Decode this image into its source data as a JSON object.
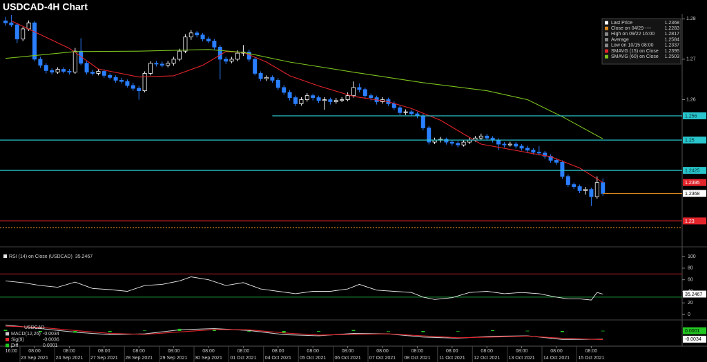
{
  "chart_data": [
    {
      "type": "candlestick",
      "title": "USDCAD-4H Chart",
      "up_color": "#ffffff",
      "down_color": "#2a7fff",
      "ylim": [
        1.2241,
        1.2809
      ],
      "yticks": [
        1.26,
        1.27,
        1.28
      ],
      "candles": [
        [
          1.2795,
          1.2805,
          1.2783,
          1.279
        ],
        [
          1.279,
          1.2817,
          1.278,
          1.2785
        ],
        [
          1.2785,
          1.279,
          1.274,
          1.275
        ],
        [
          1.275,
          1.278,
          1.2745,
          1.2775
        ],
        [
          1.2775,
          1.2796,
          1.277,
          1.279
        ],
        [
          1.279,
          1.2795,
          1.2695,
          1.27
        ],
        [
          1.27,
          1.2706,
          1.2678,
          1.2685
        ],
        [
          1.2685,
          1.269,
          1.2665,
          1.2672
        ],
        [
          1.2672,
          1.2678,
          1.2662,
          1.2668
        ],
        [
          1.2668,
          1.268,
          1.2664,
          1.2675
        ],
        [
          1.2675,
          1.268,
          1.2665,
          1.267
        ],
        [
          1.267,
          1.2676,
          1.2662,
          1.2668
        ],
        [
          1.2668,
          1.2728,
          1.2664,
          1.272
        ],
        [
          1.272,
          1.2752,
          1.2685,
          1.269
        ],
        [
          1.269,
          1.2695,
          1.2662,
          1.2668
        ],
        [
          1.2668,
          1.2674,
          1.266,
          1.2665
        ],
        [
          1.2665,
          1.2676,
          1.266,
          1.267
        ],
        [
          1.267,
          1.2675,
          1.2654,
          1.266
        ],
        [
          1.266,
          1.2665,
          1.265,
          1.2655
        ],
        [
          1.2655,
          1.266,
          1.2642,
          1.2648
        ],
        [
          1.2648,
          1.2654,
          1.264,
          1.2645
        ],
        [
          1.2645,
          1.265,
          1.263,
          1.2635
        ],
        [
          1.2635,
          1.2642,
          1.2622,
          1.2628
        ],
        [
          1.2628,
          1.2634,
          1.26,
          1.2622
        ],
        [
          1.2622,
          1.267,
          1.2618,
          1.2665
        ],
        [
          1.2665,
          1.2695,
          1.266,
          1.269
        ],
        [
          1.269,
          1.2696,
          1.2682,
          1.2688
        ],
        [
          1.2688,
          1.2694,
          1.268,
          1.2685
        ],
        [
          1.2685,
          1.2696,
          1.268,
          1.269
        ],
        [
          1.269,
          1.2706,
          1.2684,
          1.27
        ],
        [
          1.27,
          1.2726,
          1.2695,
          1.272
        ],
        [
          1.272,
          1.2762,
          1.2715,
          1.2755
        ],
        [
          1.2755,
          1.2772,
          1.2748,
          1.2765
        ],
        [
          1.2765,
          1.277,
          1.2754,
          1.276
        ],
        [
          1.276,
          1.2765,
          1.2744,
          1.275
        ],
        [
          1.275,
          1.2756,
          1.274,
          1.2745
        ],
        [
          1.2745,
          1.275,
          1.2724,
          1.273
        ],
        [
          1.273,
          1.2735,
          1.265,
          1.27
        ],
        [
          1.27,
          1.2706,
          1.2688,
          1.2695
        ],
        [
          1.2695,
          1.2706,
          1.269,
          1.27
        ],
        [
          1.27,
          1.2722,
          1.2695,
          1.2715
        ],
        [
          1.2715,
          1.2735,
          1.2708,
          1.2718
        ],
        [
          1.2718,
          1.2724,
          1.2694,
          1.27
        ],
        [
          1.27,
          1.2705,
          1.266,
          1.2665
        ],
        [
          1.2665,
          1.267,
          1.2646,
          1.2652
        ],
        [
          1.2652,
          1.266,
          1.2646,
          1.2655
        ],
        [
          1.2655,
          1.266,
          1.2642,
          1.2648
        ],
        [
          1.2648,
          1.2653,
          1.2624,
          1.263
        ],
        [
          1.263,
          1.2636,
          1.2612,
          1.2618
        ],
        [
          1.2618,
          1.2624,
          1.2598,
          1.2605
        ],
        [
          1.2605,
          1.261,
          1.2584,
          1.259
        ],
        [
          1.259,
          1.2606,
          1.2585,
          1.26
        ],
        [
          1.26,
          1.2616,
          1.2595,
          1.261
        ],
        [
          1.261,
          1.2615,
          1.2598,
          1.2605
        ],
        [
          1.2605,
          1.261,
          1.2592,
          1.2598
        ],
        [
          1.2598,
          1.2606,
          1.2575,
          1.26
        ],
        [
          1.26,
          1.2605,
          1.2588,
          1.2595
        ],
        [
          1.2595,
          1.2604,
          1.259,
          1.2598
        ],
        [
          1.2598,
          1.2606,
          1.2594,
          1.26
        ],
        [
          1.26,
          1.2618,
          1.2596,
          1.261
        ],
        [
          1.261,
          1.2645,
          1.2605,
          1.263
        ],
        [
          1.263,
          1.264,
          1.2618,
          1.2625
        ],
        [
          1.2625,
          1.263,
          1.2604,
          1.261
        ],
        [
          1.261,
          1.2615,
          1.2598,
          1.2605
        ],
        [
          1.2605,
          1.261,
          1.2588,
          1.2595
        ],
        [
          1.2595,
          1.2606,
          1.259,
          1.26
        ],
        [
          1.26,
          1.2605,
          1.2584,
          1.259
        ],
        [
          1.259,
          1.2596,
          1.2574,
          1.258
        ],
        [
          1.258,
          1.2585,
          1.2562,
          1.2568
        ],
        [
          1.2568,
          1.2576,
          1.2562,
          1.257
        ],
        [
          1.257,
          1.2575,
          1.256,
          1.2565
        ],
        [
          1.2565,
          1.257,
          1.2554,
          1.256
        ],
        [
          1.256,
          1.2565,
          1.2524,
          1.253
        ],
        [
          1.253,
          1.2535,
          1.2489,
          1.2495
        ],
        [
          1.2495,
          1.2506,
          1.249,
          1.25
        ],
        [
          1.25,
          1.2508,
          1.2494,
          1.2502
        ],
        [
          1.2502,
          1.2506,
          1.2489,
          1.2495
        ],
        [
          1.2495,
          1.25,
          1.2486,
          1.2492
        ],
        [
          1.2492,
          1.2497,
          1.2482,
          1.2488
        ],
        [
          1.2488,
          1.25,
          1.2484,
          1.2495
        ],
        [
          1.2495,
          1.2506,
          1.249,
          1.25
        ],
        [
          1.25,
          1.251,
          1.2496,
          1.2505
        ],
        [
          1.2505,
          1.2516,
          1.25,
          1.251
        ],
        [
          1.251,
          1.2515,
          1.2499,
          1.2505
        ],
        [
          1.2505,
          1.251,
          1.2494,
          1.25
        ],
        [
          1.25,
          1.2505,
          1.2475,
          1.249
        ],
        [
          1.249,
          1.2495,
          1.2482,
          1.2488
        ],
        [
          1.2488,
          1.2496,
          1.2484,
          1.249
        ],
        [
          1.249,
          1.2495,
          1.2479,
          1.2485
        ],
        [
          1.2485,
          1.249,
          1.2474,
          1.248
        ],
        [
          1.248,
          1.2486,
          1.2469,
          1.2475
        ],
        [
          1.2475,
          1.248,
          1.2464,
          1.247
        ],
        [
          1.247,
          1.2485,
          1.2462,
          1.2468
        ],
        [
          1.2468,
          1.2473,
          1.2454,
          1.246
        ],
        [
          1.246,
          1.2465,
          1.2444,
          1.245
        ],
        [
          1.245,
          1.2455,
          1.2439,
          1.2445
        ],
        [
          1.2445,
          1.245,
          1.2404,
          1.241
        ],
        [
          1.241,
          1.2415,
          1.2384,
          1.239
        ],
        [
          1.239,
          1.2395,
          1.2379,
          1.2385
        ],
        [
          1.2385,
          1.239,
          1.2369,
          1.2375
        ],
        [
          1.2375,
          1.2384,
          1.2365,
          1.2378
        ],
        [
          1.2378,
          1.2382,
          1.2337,
          1.236
        ],
        [
          1.236,
          1.241,
          1.2355,
          1.2395
        ],
        [
          1.2395,
          1.2405,
          1.2362,
          1.2368
        ]
      ],
      "series": [
        {
          "name": "SMAVG (15)  on Close",
          "color": "#e3242b",
          "axis_box": true,
          "x": [
            1,
            6,
            11,
            16,
            23,
            29,
            34,
            38,
            41,
            45,
            49,
            54,
            60,
            66,
            70,
            75,
            79,
            82,
            90,
            94,
            99,
            103
          ],
          "values": [
            1.2795,
            1.2761,
            1.2727,
            1.2676,
            1.2656,
            1.2659,
            1.2685,
            1.2719,
            1.2717,
            1.2693,
            1.2659,
            1.2634,
            1.2608,
            1.2595,
            1.2578,
            1.2549,
            1.2515,
            1.249,
            1.2469,
            1.2459,
            1.2431,
            1.2395
          ]
        },
        {
          "name": "SMAVG (60)  on Close",
          "color": "#7dc21e",
          "axis_box": false,
          "x": [
            0,
            12,
            23,
            35,
            41,
            49,
            60,
            72,
            83,
            90,
            96,
            103
          ],
          "values": [
            1.2702,
            1.2719,
            1.272,
            1.2724,
            1.2717,
            1.2693,
            1.2668,
            1.2642,
            1.2622,
            1.26,
            1.2558,
            1.2503
          ]
        }
      ],
      "levels": [
        {
          "value": 1.256,
          "color": "#29c5cc",
          "label_color": "#003333",
          "x_from": 46
        },
        {
          "value": 1.25,
          "color": "#29c5cc",
          "label_color": "#003333"
        },
        {
          "value": 1.2425,
          "color": "#29c5cc",
          "label_color": "#003333"
        },
        {
          "value": 1.23,
          "color": "#e3242b",
          "label_color": "#ffffff"
        },
        {
          "value": 1.2368,
          "color": "#e08a1e",
          "box_color": "#ffffff",
          "label_color": "#000000",
          "x_from": 103
        },
        {
          "value": 1.2283,
          "color": "#e08a1e",
          "dash": true
        }
      ],
      "legend": [
        {
          "label": "Last Price",
          "value": 1.2368,
          "color": "#ffffff"
        },
        {
          "label": "Close on 04/29  ----",
          "value": 1.2283,
          "color": "#e08a1e"
        },
        {
          "label": "High on 09/22 16:00",
          "value": 1.2817,
          "color": "#888888"
        },
        {
          "label": "Average",
          "value": 1.2584,
          "color": "#888888"
        },
        {
          "label": "Low on 10/15 08:00",
          "value": 1.2337,
          "color": "#888888"
        }
      ],
      "xticks": [
        {
          "value": 1,
          "label": "16:00"
        },
        {
          "value": 5,
          "label": "08:00"
        },
        {
          "value": 11,
          "label": "08:00"
        },
        {
          "value": 17,
          "label": "08:00"
        },
        {
          "value": 23,
          "label": "08:00"
        },
        {
          "value": 29,
          "label": "08:00"
        },
        {
          "value": 35,
          "label": "08:00"
        },
        {
          "value": 41,
          "label": "08:00"
        },
        {
          "value": 47,
          "label": "08:00"
        },
        {
          "value": 53,
          "label": "08:00"
        },
        {
          "value": 59,
          "label": "08:00"
        },
        {
          "value": 65,
          "label": "08:00"
        },
        {
          "value": 71,
          "label": "08:00"
        },
        {
          "value": 77,
          "label": "08:00"
        },
        {
          "value": 83,
          "label": "08:00"
        },
        {
          "value": 89,
          "label": "08:00"
        },
        {
          "value": 95,
          "label": "08:00"
        },
        {
          "value": 101,
          "label": "08:00"
        }
      ],
      "date_labels": [
        {
          "value": 5,
          "label": "23 Sep 2021"
        },
        {
          "value": 11,
          "label": "24 Sep 2021"
        },
        {
          "value": 17,
          "label": "27 Sep 2021"
        },
        {
          "value": 23,
          "label": "28 Sep 2021"
        },
        {
          "value": 29,
          "label": "29 Sep 2021"
        },
        {
          "value": 35,
          "label": "30 Sep 2021"
        },
        {
          "value": 41,
          "label": "01 Oct 2021"
        },
        {
          "value": 47,
          "label": "04 Oct 2021"
        },
        {
          "value": 53,
          "label": "05 Oct 2021"
        },
        {
          "value": 59,
          "label": "06 Oct 2021"
        },
        {
          "value": 65,
          "label": "07 Oct 2021"
        },
        {
          "value": 71,
          "label": "08 Oct 2021"
        },
        {
          "value": 77,
          "label": "11 Oct 2021"
        },
        {
          "value": 83,
          "label": "12 Oct 2021"
        },
        {
          "value": 89,
          "label": "13 Oct 2021"
        },
        {
          "value": 95,
          "label": "14 Oct 2021"
        },
        {
          "value": 101,
          "label": "15 Oct 2021"
        }
      ]
    },
    {
      "type": "line",
      "ylim": [
        -7,
        112
      ],
      "yticks": [
        0,
        20,
        40,
        60,
        80,
        100
      ],
      "levels": [
        {
          "value": 70,
          "color": "#b0202a"
        },
        {
          "value": 30,
          "color": "#1f9a3a"
        }
      ],
      "series": [
        {
          "name": "RSI (14)  on Close (USDCAD)",
          "color": "#e8e8e8",
          "box_color": "#ffffff",
          "x": [
            0,
            3,
            6,
            9,
            12,
            15,
            18,
            21,
            24,
            27,
            30,
            32,
            35,
            38,
            41,
            44,
            47,
            50,
            53,
            56,
            59,
            61,
            64,
            67,
            70,
            72,
            74,
            77,
            80,
            83,
            86,
            89,
            92,
            95,
            97,
            99,
            101,
            102,
            103
          ],
          "values": [
            58,
            55,
            50,
            47,
            56,
            45,
            43,
            40,
            50,
            52,
            58,
            65,
            60,
            50,
            55,
            44,
            40,
            36,
            40,
            40,
            44,
            52,
            42,
            40,
            38,
            30,
            26,
            29,
            38,
            40,
            36,
            38,
            36,
            30,
            27,
            27,
            25,
            38,
            35.2467
          ]
        }
      ]
    },
    {
      "type": "macd",
      "title": "USDCAD",
      "ylim": [
        -0.006,
        0.004
      ],
      "series": [
        {
          "name": "MACD(12,26)",
          "type": "line",
          "color": "#c8c8c8",
          "box_color": "#ffffff",
          "x": [
            0,
            6,
            12,
            18,
            24,
            30,
            36,
            42,
            48,
            54,
            60,
            66,
            72,
            78,
            84,
            90,
            96,
            103
          ],
          "values": [
            0.0025,
            0.001,
            -0.0005,
            -0.0015,
            -0.0012,
            0.0005,
            0.001,
            0.0002,
            -0.0015,
            -0.002,
            -0.001,
            -0.0012,
            -0.0025,
            -0.003,
            -0.0022,
            -0.002,
            -0.0035,
            -0.0034
          ]
        },
        {
          "name": "Sig(9)",
          "type": "line",
          "color": "#e3242b",
          "x": [
            0,
            6,
            12,
            18,
            24,
            30,
            36,
            42,
            48,
            54,
            60,
            66,
            72,
            78,
            84,
            90,
            96,
            103
          ],
          "values": [
            0.002,
            0.0015,
            0.0002,
            -0.001,
            -0.0014,
            -0.0004,
            0.0006,
            0.0005,
            -0.0008,
            -0.0017,
            -0.0014,
            -0.0012,
            -0.002,
            -0.0028,
            -0.0025,
            -0.0021,
            -0.003,
            -0.0036
          ]
        },
        {
          "name": "Diff",
          "type": "bar",
          "color": "#22c822",
          "box_color": "#22c822",
          "x": [
            0,
            6,
            12,
            18,
            24,
            30,
            36,
            42,
            48,
            54,
            60,
            66,
            72,
            78,
            84,
            90,
            96,
            103
          ],
          "values": [
            0.0005,
            -0.0005,
            -0.0007,
            -0.0005,
            0.0002,
            0.0009,
            0.0004,
            -0.0003,
            -0.0007,
            -0.0003,
            0.0004,
            0.0,
            -0.0005,
            -0.0002,
            0.0003,
            0.0001,
            -0.0005,
            0.0001
          ]
        }
      ]
    }
  ]
}
